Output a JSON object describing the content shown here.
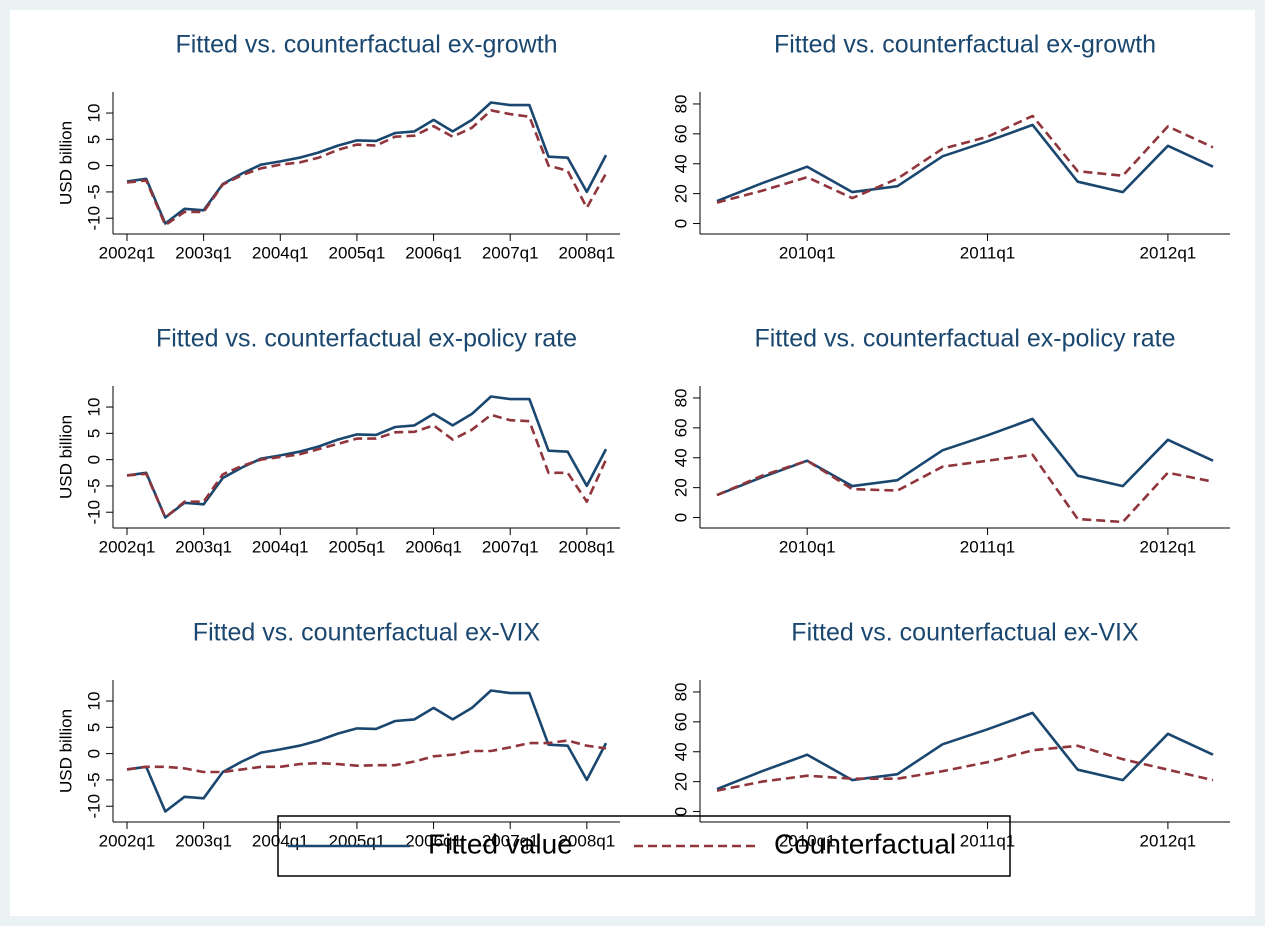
{
  "chart_data": [
    {
      "type": "line",
      "title": "Fitted vs. counterfactual ex-growth",
      "ylabel": "USD billion",
      "categories": [
        "2002q1",
        null,
        null,
        null,
        "2003q1",
        null,
        null,
        null,
        "2004q1",
        null,
        null,
        null,
        "2005q1",
        null,
        null,
        null,
        "2006q1",
        null,
        null,
        null,
        "2007q1",
        null,
        null,
        null,
        "2008q1",
        null
      ],
      "series": [
        {
          "color": "#1a476f",
          "dash": false,
          "values": [
            -3,
            -2.5,
            -11,
            -8.2,
            -8.5,
            -3.5,
            -1.5,
            0.2,
            0.8,
            1.5,
            2.5,
            3.8,
            4.8,
            4.7,
            6.2,
            6.5,
            8.7,
            6.5,
            8.7,
            12,
            11.5,
            11.5,
            1.7,
            1.5,
            -5,
            2
          ]
        },
        {
          "color": "#90353b",
          "dash": true,
          "values": [
            -3.2,
            -2.8,
            -11.3,
            -8.8,
            -8.8,
            -3.6,
            -1.8,
            -0.5,
            0.2,
            0.6,
            1.5,
            3,
            4,
            3.8,
            5.5,
            5.7,
            7.5,
            5.5,
            7.2,
            10.5,
            9.8,
            9.3,
            0,
            -1,
            -8,
            -1.5
          ]
        }
      ],
      "ylim": [
        -13,
        14
      ],
      "yticks": [
        -10,
        -5,
        0,
        5,
        10
      ]
    },
    {
      "type": "line",
      "title": "Fitted vs. counterfactual ex-growth",
      "categories": [
        null,
        null,
        "2010q1",
        null,
        null,
        null,
        "2011q1",
        null,
        null,
        null,
        "2012q1",
        null
      ],
      "series": [
        {
          "color": "#1a476f",
          "dash": false,
          "values": [
            15,
            27,
            38,
            21,
            25,
            45,
            55,
            66,
            28,
            21,
            52,
            38
          ]
        },
        {
          "color": "#90353b",
          "dash": true,
          "values": [
            14,
            22,
            31,
            17,
            30,
            50,
            58,
            72,
            35,
            32,
            65,
            51
          ]
        }
      ],
      "ylim": [
        -7,
        88
      ],
      "yticks": [
        0,
        20,
        40,
        60,
        80
      ]
    },
    {
      "type": "line",
      "title": "Fitted vs. counterfactual ex-policy rate",
      "ylabel": "USD billion",
      "categories": [
        "2002q1",
        null,
        null,
        null,
        "2003q1",
        null,
        null,
        null,
        "2004q1",
        null,
        null,
        null,
        "2005q1",
        null,
        null,
        null,
        "2006q1",
        null,
        null,
        null,
        "2007q1",
        null,
        null,
        null,
        "2008q1",
        null
      ],
      "series": [
        {
          "color": "#1a476f",
          "dash": false,
          "values": [
            -3,
            -2.5,
            -11,
            -8.2,
            -8.5,
            -3.5,
            -1.5,
            0.2,
            0.8,
            1.5,
            2.5,
            3.8,
            4.8,
            4.7,
            6.2,
            6.5,
            8.7,
            6.5,
            8.7,
            12,
            11.5,
            11.5,
            1.7,
            1.5,
            -5,
            2
          ]
        },
        {
          "color": "#90353b",
          "dash": true,
          "values": [
            -3,
            -2.7,
            -11,
            -8,
            -8,
            -2.8,
            -1.2,
            0,
            0.5,
            1,
            2,
            3,
            4,
            4,
            5.2,
            5.3,
            6.5,
            3.8,
            5.7,
            8.5,
            7.5,
            7.3,
            -2.5,
            -2.5,
            -8,
            0
          ]
        }
      ],
      "ylim": [
        -13,
        14
      ],
      "yticks": [
        -10,
        -5,
        0,
        5,
        10
      ]
    },
    {
      "type": "line",
      "title": "Fitted vs. counterfactual ex-policy rate",
      "categories": [
        null,
        null,
        "2010q1",
        null,
        null,
        null,
        "2011q1",
        null,
        null,
        null,
        "2012q1",
        null
      ],
      "series": [
        {
          "color": "#1a476f",
          "dash": false,
          "values": [
            15,
            27,
            38,
            21,
            25,
            45,
            55,
            66,
            28,
            21,
            52,
            38
          ]
        },
        {
          "color": "#90353b",
          "dash": true,
          "values": [
            15,
            28,
            38,
            19,
            18,
            34,
            38,
            42,
            -1,
            -3,
            30,
            24
          ]
        }
      ],
      "ylim": [
        -7,
        88
      ],
      "yticks": [
        0,
        20,
        40,
        60,
        80
      ]
    },
    {
      "type": "line",
      "title": "Fitted vs. counterfactual ex-VIX",
      "ylabel": "USD billion",
      "categories": [
        "2002q1",
        null,
        null,
        null,
        "2003q1",
        null,
        null,
        null,
        "2004q1",
        null,
        null,
        null,
        "2005q1",
        null,
        null,
        null,
        "2006q1",
        null,
        null,
        null,
        "2007q1",
        null,
        null,
        null,
        "2008q1",
        null
      ],
      "series": [
        {
          "color": "#1a476f",
          "dash": false,
          "values": [
            -3,
            -2.5,
            -11,
            -8.2,
            -8.5,
            -3.5,
            -1.5,
            0.2,
            0.8,
            1.5,
            2.5,
            3.8,
            4.8,
            4.7,
            6.2,
            6.5,
            8.7,
            6.5,
            8.7,
            12,
            11.5,
            11.5,
            1.7,
            1.5,
            -5,
            2
          ]
        },
        {
          "color": "#90353b",
          "dash": true,
          "values": [
            -3,
            -2.5,
            -2.5,
            -2.8,
            -3.5,
            -3.5,
            -3,
            -2.5,
            -2.5,
            -2,
            -1.8,
            -2,
            -2.3,
            -2.2,
            -2.2,
            -1.5,
            -0.5,
            -0.2,
            0.5,
            0.5,
            1.2,
            2,
            2,
            2.5,
            1.5,
            1
          ]
        }
      ],
      "ylim": [
        -13,
        14
      ],
      "yticks": [
        -10,
        -5,
        0,
        5,
        10
      ]
    },
    {
      "type": "line",
      "title": "Fitted vs. counterfactual ex-VIX",
      "categories": [
        null,
        null,
        "2010q1",
        null,
        null,
        null,
        "2011q1",
        null,
        null,
        null,
        "2012q1",
        null
      ],
      "series": [
        {
          "color": "#1a476f",
          "dash": false,
          "values": [
            15,
            27,
            38,
            21,
            25,
            45,
            55,
            66,
            28,
            21,
            52,
            38
          ]
        },
        {
          "color": "#90353b",
          "dash": true,
          "values": [
            14,
            20,
            24,
            22,
            22,
            27,
            33,
            41,
            44,
            35,
            28,
            21
          ]
        }
      ],
      "ylim": [
        -7,
        88
      ],
      "yticks": [
        0,
        20,
        40,
        60,
        80
      ]
    }
  ],
  "legend": {
    "entries": [
      {
        "name": "Fitted value",
        "color": "#1a476f",
        "dash": false
      },
      {
        "name": "Counterfactual",
        "color": "#90353b",
        "dash": true
      }
    ]
  }
}
